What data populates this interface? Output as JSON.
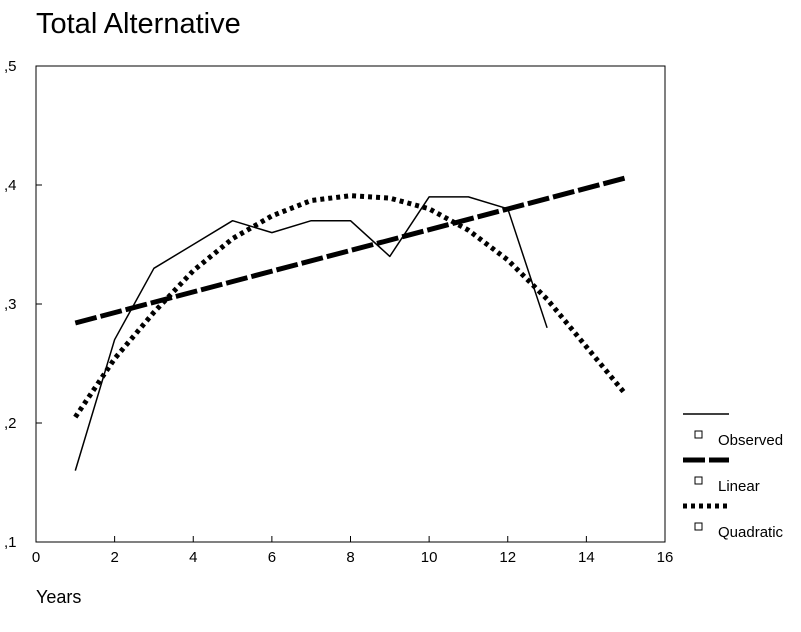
{
  "chart_data": {
    "type": "line",
    "title": "Total Alternative",
    "xlabel": "Years",
    "ylabel": "",
    "xlim": [
      0,
      16
    ],
    "ylim": [
      0.1,
      0.5
    ],
    "x_ticks": [
      {
        "value": 0,
        "label": "0"
      },
      {
        "value": 2,
        "label": "2"
      },
      {
        "value": 4,
        "label": "4"
      },
      {
        "value": 6,
        "label": "6"
      },
      {
        "value": 8,
        "label": "8"
      },
      {
        "value": 10,
        "label": "10"
      },
      {
        "value": 12,
        "label": "12"
      },
      {
        "value": 14,
        "label": "14"
      },
      {
        "value": 16,
        "label": "16"
      }
    ],
    "y_ticks": [
      {
        "value": 0.1,
        "label": ",1"
      },
      {
        "value": 0.2,
        "label": ",2"
      },
      {
        "value": 0.3,
        "label": ",3"
      },
      {
        "value": 0.4,
        "label": ",4"
      },
      {
        "value": 0.5,
        "label": ",5"
      }
    ],
    "grid": false,
    "legend_position": "right",
    "series": [
      {
        "name": "Observed",
        "style": "solid",
        "x": [
          1,
          2,
          3,
          4,
          5,
          6,
          7,
          8,
          9,
          10,
          11,
          12,
          13
        ],
        "y": [
          0.16,
          0.27,
          0.33,
          0.35,
          0.37,
          0.36,
          0.37,
          0.37,
          0.34,
          0.39,
          0.39,
          0.38,
          0.28
        ]
      },
      {
        "name": "Linear",
        "style": "dashed",
        "x": [
          1,
          15
        ],
        "y": [
          0.284,
          0.406
        ]
      },
      {
        "name": "Quadratic",
        "style": "dotted",
        "x": [
          1,
          2,
          3,
          4,
          5,
          6,
          7,
          8,
          9,
          10,
          11,
          12,
          13,
          14,
          15
        ],
        "y": [
          0.205,
          0.254,
          0.293,
          0.328,
          0.355,
          0.374,
          0.387,
          0.391,
          0.389,
          0.38,
          0.362,
          0.337,
          0.304,
          0.264,
          0.224
        ]
      }
    ]
  }
}
